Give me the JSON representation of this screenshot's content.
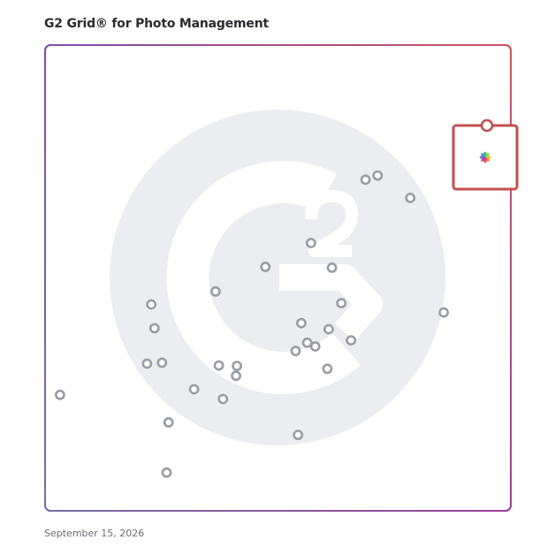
{
  "chart_data": {
    "type": "scatter",
    "title": "G2 Grid® for Photo Management",
    "date": "September 15, 2026",
    "xlabel": "",
    "ylabel": "",
    "xlim": [
      0,
      100
    ],
    "ylim": [
      0,
      100
    ],
    "quadrant_split": {
      "x": 50,
      "y": 50
    },
    "grid": true,
    "legend": "none",
    "background_logo": "g2-logo-watermark",
    "colors": {
      "frame_top_left": "#5b4fcf",
      "frame_top_right": "#f0603a",
      "frame_bottom_left": "#2d9ad9",
      "frame_bottom_right": "#8e3aa8",
      "point_stroke": "#9a9ca6",
      "highlight_box": "#c0504f",
      "watermark": "#ebedf0"
    },
    "points": [
      {
        "x": 3.2,
        "y": 24.9
      },
      {
        "x": 22.8,
        "y": 44.3
      },
      {
        "x": 23.5,
        "y": 39.2
      },
      {
        "x": 21.9,
        "y": 31.6
      },
      {
        "x": 25.1,
        "y": 31.8
      },
      {
        "x": 26.5,
        "y": 19.0
      },
      {
        "x": 26.1,
        "y": 8.2
      },
      {
        "x": 32.0,
        "y": 26.1
      },
      {
        "x": 36.6,
        "y": 47.1
      },
      {
        "x": 37.3,
        "y": 31.2
      },
      {
        "x": 38.2,
        "y": 24.0
      },
      {
        "x": 41.2,
        "y": 31.1
      },
      {
        "x": 41.0,
        "y": 29.0
      },
      {
        "x": 47.3,
        "y": 52.4
      },
      {
        "x": 57.1,
        "y": 57.5
      },
      {
        "x": 61.6,
        "y": 52.2
      },
      {
        "x": 63.6,
        "y": 44.6
      },
      {
        "x": 55.0,
        "y": 40.3
      },
      {
        "x": 60.9,
        "y": 39.0
      },
      {
        "x": 56.3,
        "y": 36.1
      },
      {
        "x": 58.0,
        "y": 35.3
      },
      {
        "x": 53.8,
        "y": 34.3
      },
      {
        "x": 65.7,
        "y": 36.6
      },
      {
        "x": 60.6,
        "y": 30.5
      },
      {
        "x": 54.3,
        "y": 16.3
      },
      {
        "x": 68.8,
        "y": 71.1
      },
      {
        "x": 71.4,
        "y": 72.0
      },
      {
        "x": 78.4,
        "y": 67.2
      },
      {
        "x": 90.1,
        "y": 72.2
      },
      {
        "x": 85.6,
        "y": 42.6
      }
    ],
    "highlight": {
      "x": 94.5,
      "y": 75.9,
      "icon": "photos-pinwheel-icon"
    }
  }
}
